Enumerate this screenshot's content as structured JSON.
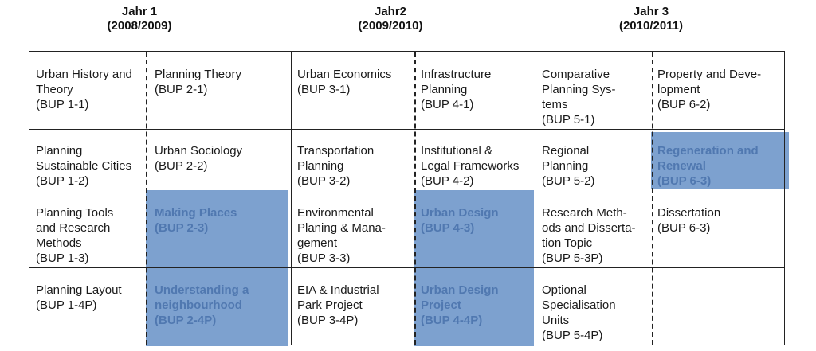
{
  "years": [
    {
      "name": "Jahr 1",
      "period": "(2008/2009)"
    },
    {
      "name": "Jahr2",
      "period": "(2009/2010)"
    },
    {
      "name": "Jahr 3",
      "period": "(2010/2011)"
    }
  ],
  "cells": {
    "r1c1": {
      "lines": [
        "Urban History and",
        "Theory",
        "(BUP 1-1)"
      ]
    },
    "r1c2": {
      "lines": [
        "Planning Theory",
        "(BUP 2-1)"
      ]
    },
    "r1c3": {
      "lines": [
        "Urban Economics",
        "(BUP 3-1)"
      ]
    },
    "r1c4": {
      "lines": [
        "Infrastructure",
        "Planning",
        "(BUP 4-1)"
      ]
    },
    "r1c5": {
      "lines": [
        "Comparative",
        "Planning Sys-",
        "tems",
        "(BUP 5-1)"
      ]
    },
    "r1c6": {
      "lines": [
        "Property and Deve-",
        "lopment",
        "(BUP 6-2)"
      ]
    },
    "r2c1": {
      "lines": [
        "Planning",
        "Sustainable Cities",
        "(BUP 1-2)"
      ]
    },
    "r2c2": {
      "lines": [
        "Urban Sociology",
        "(BUP 2-2)"
      ]
    },
    "r2c3": {
      "lines": [
        "Transportation",
        "Planning",
        "(BUP 3-2)"
      ]
    },
    "r2c4": {
      "lines": [
        "Institutional &",
        "Legal Frameworks",
        "(BUP 4-2)"
      ]
    },
    "r2c5": {
      "lines": [
        "Regional",
        "Planning",
        "(BUP 5-2)"
      ]
    },
    "r2c6": {
      "lines": [
        "Regeneration and",
        "Renewal",
        "(BUP 6-3)"
      ]
    },
    "r3c1": {
      "lines": [
        "Planning Tools",
        "and Research",
        "Methods",
        "(BUP 1-3)"
      ]
    },
    "r3c2": {
      "lines": [
        "Making Places",
        "(BUP 2-3)"
      ]
    },
    "r3c3": {
      "lines": [
        "Environmental",
        "Planing & Mana-",
        "gement",
        "(BUP 3-3)"
      ]
    },
    "r3c4": {
      "lines": [
        "Urban Design",
        "(BUP 4-3)"
      ]
    },
    "r3c5": {
      "lines": [
        "Research Meth-",
        "ods and Disserta-",
        "tion Topic",
        "(BUP 5-3P)"
      ]
    },
    "r3c6": {
      "lines": [
        "Dissertation",
        "(BUP 6-3)"
      ]
    },
    "r4c1": {
      "lines": [
        "Planning Layout",
        "(BUP 1-4P)"
      ]
    },
    "r4c2": {
      "lines": [
        "Understanding a",
        "neighbourhood",
        "(BUP 2-4P)"
      ]
    },
    "r4c3": {
      "lines": [
        "EIA & Industrial",
        "Park Project",
        "(BUP 3-4P)"
      ]
    },
    "r4c4": {
      "lines": [
        "Urban Design",
        "Project",
        "(BUP 4-4P)"
      ]
    },
    "r4c5": {
      "lines": [
        "Optional",
        "Specialisation",
        "Units",
        "(BUP 5-4P)"
      ]
    }
  },
  "colors": {
    "highlight": "#7da1cf",
    "highlight_text": "#5078b0",
    "grid": "#222222"
  }
}
